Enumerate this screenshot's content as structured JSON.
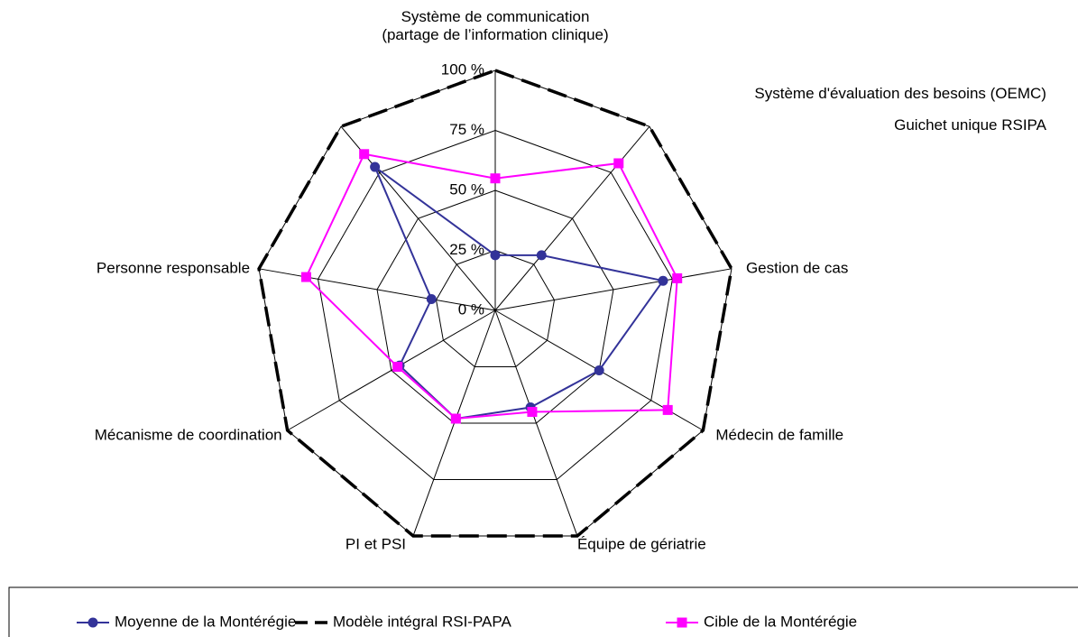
{
  "chart_data": {
    "type": "radar",
    "categories": [
      "Système de communication\n(partage de l’information clinique)",
      "Système d'évaluation des besoins (OEMC)\nGuichet unique RSIPA",
      "Gestion de cas",
      "Médecin de famille",
      "Équipe de gériatrie",
      "PI et PSI",
      "Mécanisme de coordination",
      "Personne responsable",
      null
    ],
    "series": [
      {
        "name": "Moyenne de la Montérégie",
        "color": "#333399",
        "marker": "circle",
        "dash": false,
        "values": [
          23,
          30,
          71,
          50,
          43,
          48,
          46,
          27,
          78
        ]
      },
      {
        "name": "Modèle intégral RSI-PAPA",
        "color": "#000000",
        "marker": "none",
        "dash": true,
        "values": [
          100,
          100,
          100,
          100,
          100,
          100,
          100,
          100,
          100
        ]
      },
      {
        "name": "Cible de la Montérégie",
        "color": "#ff00ff",
        "marker": "square",
        "dash": false,
        "values": [
          55,
          80,
          77,
          83,
          45,
          48,
          47,
          80,
          85
        ]
      }
    ],
    "rlim": [
      0,
      100
    ],
    "rticks": [
      {
        "value": 0,
        "label": "0 %"
      },
      {
        "value": 25,
        "label": "25 %"
      },
      {
        "value": 50,
        "label": "50 %"
      },
      {
        "value": 75,
        "label": "75 %"
      },
      {
        "value": 100,
        "label": "100 %"
      }
    ],
    "grid": true,
    "legend": "bottom"
  }
}
